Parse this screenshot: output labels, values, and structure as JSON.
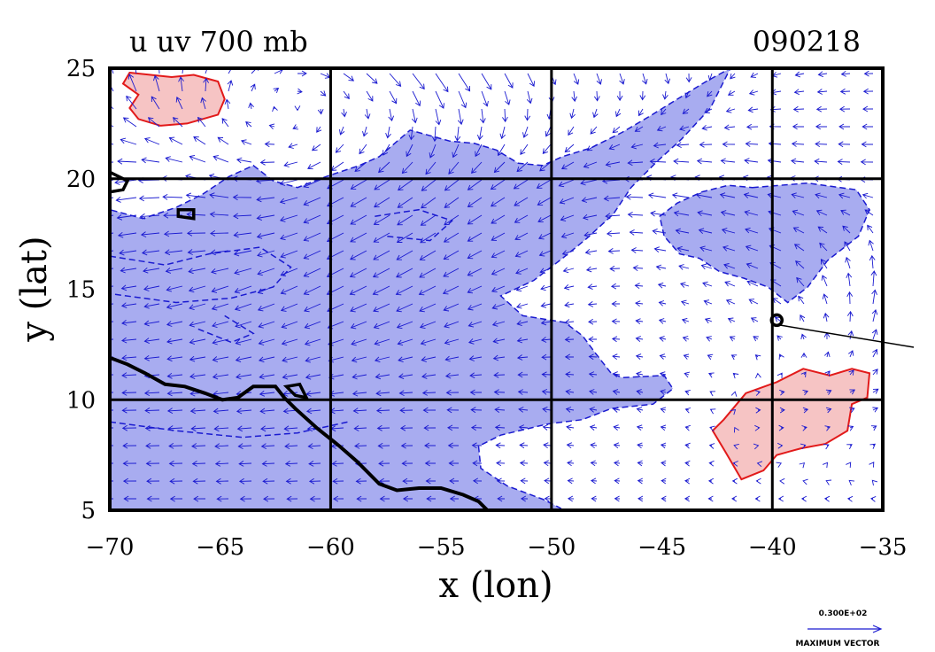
{
  "title_left": "u  uv  700  mb",
  "title_right": "090218",
  "xlabel": "x (lon)",
  "ylabel": "y (lat)",
  "key_magnitude": "0.300E+02",
  "key_label": "MAXIMUM VECTOR",
  "colors": {
    "blue_fill": "#a8acf0",
    "blue_line": "#1a1ad0",
    "red_fill": "#f6c4c4",
    "red_line": "#e21a1a",
    "grid": "#000000"
  },
  "chart_data": {
    "type": "vector-contour-map",
    "xlim": [
      -70,
      -35
    ],
    "ylim": [
      5,
      25
    ],
    "xticks": [
      {
        "value": -70,
        "label": "−70"
      },
      {
        "value": -65,
        "label": "−65"
      },
      {
        "value": -60,
        "label": "−60"
      },
      {
        "value": -55,
        "label": "−55"
      },
      {
        "value": -50,
        "label": "−50"
      },
      {
        "value": -45,
        "label": "−45"
      },
      {
        "value": -40,
        "label": "−40"
      },
      {
        "value": -35,
        "label": "−35"
      }
    ],
    "yticks": [
      {
        "value": 5,
        "label": "5"
      },
      {
        "value": 10,
        "label": "10"
      },
      {
        "value": 15,
        "label": "15"
      },
      {
        "value": 20,
        "label": "20"
      },
      {
        "value": 25,
        "label": "25"
      }
    ],
    "gridlines_x": [
      -60,
      -50,
      -40
    ],
    "gridlines_y": [
      10,
      20
    ],
    "negative_region": [
      [
        -70,
        5
      ],
      [
        -70,
        18.6
      ],
      [
        -68.5,
        18.2
      ],
      [
        -67,
        18.7
      ],
      [
        -65.8,
        19.3
      ],
      [
        -64.6,
        20.1
      ],
      [
        -63.5,
        20.6
      ],
      [
        -62.6,
        19.9
      ],
      [
        -61.5,
        19.6
      ],
      [
        -60.2,
        20.1
      ],
      [
        -58.7,
        20.6
      ],
      [
        -57.8,
        21.0
      ],
      [
        -56.4,
        22.2
      ],
      [
        -54.6,
        21.7
      ],
      [
        -53.5,
        21.6
      ],
      [
        -52.5,
        21.3
      ],
      [
        -51.5,
        20.7
      ],
      [
        -50.4,
        20.6
      ],
      [
        -49.5,
        21.0
      ],
      [
        -48.2,
        21.4
      ],
      [
        -46.8,
        22.1
      ],
      [
        -45.6,
        22.8
      ],
      [
        -44.3,
        23.6
      ],
      [
        -43,
        24.4
      ],
      [
        -41.9,
        25
      ],
      [
        -42.8,
        23.2
      ],
      [
        -44.1,
        21.8
      ],
      [
        -45.2,
        20.8
      ],
      [
        -46.4,
        19.6
      ],
      [
        -47.2,
        18.4
      ],
      [
        -48.4,
        17.3
      ],
      [
        -49.5,
        16.4
      ],
      [
        -50.8,
        15.4
      ],
      [
        -52.3,
        14.7
      ],
      [
        -51.3,
        13.8
      ],
      [
        -49.4,
        13.5
      ],
      [
        -48.6,
        12.9
      ],
      [
        -48,
        12.1
      ],
      [
        -47.3,
        11.2
      ],
      [
        -46.8,
        11.0
      ],
      [
        -44.9,
        11.1
      ],
      [
        -44.5,
        10.5
      ],
      [
        -45.4,
        9.8
      ],
      [
        -47.3,
        9.6
      ],
      [
        -48.6,
        9.1
      ],
      [
        -50.2,
        8.9
      ],
      [
        -52.3,
        8.4
      ],
      [
        -53.3,
        7.9
      ],
      [
        -53.2,
        6.9
      ],
      [
        -52,
        6.1
      ],
      [
        -50.4,
        5.5
      ],
      [
        -49.6,
        5.1
      ],
      [
        -49.5,
        5
      ]
    ],
    "negative_region_east": [
      [
        -40.9,
        19.6
      ],
      [
        -38.4,
        19.8
      ],
      [
        -36.2,
        19.5
      ],
      [
        -35.6,
        18.6
      ],
      [
        -36.1,
        17.4
      ],
      [
        -37.5,
        16.3
      ],
      [
        -38.4,
        15.1
      ],
      [
        -39.3,
        14.4
      ],
      [
        -40.2,
        15.1
      ],
      [
        -41.3,
        15.5
      ],
      [
        -42.4,
        15.8
      ],
      [
        -43.3,
        16.4
      ],
      [
        -44.2,
        16.6
      ],
      [
        -44.9,
        17.4
      ],
      [
        -45.1,
        18.3
      ],
      [
        -44.3,
        18.9
      ],
      [
        -43.2,
        19.4
      ],
      [
        -42,
        19.7
      ]
    ],
    "positive_region_nw": [
      [
        -69.1,
        24.8
      ],
      [
        -67.2,
        24.6
      ],
      [
        -66.2,
        24.7
      ],
      [
        -65.1,
        24.4
      ],
      [
        -64.8,
        23.6
      ],
      [
        -65.1,
        22.9
      ],
      [
        -66.5,
        22.5
      ],
      [
        -67.7,
        22.4
      ],
      [
        -68.7,
        22.7
      ],
      [
        -69.1,
        23.2
      ],
      [
        -68.7,
        23.8
      ],
      [
        -69.4,
        24.3
      ]
    ],
    "positive_region_east": [
      [
        -42.2,
        9.1
      ],
      [
        -41.2,
        10.3
      ],
      [
        -39.8,
        10.8
      ],
      [
        -38.6,
        11.4
      ],
      [
        -37.4,
        11.1
      ],
      [
        -36.4,
        11.4
      ],
      [
        -35.6,
        11.2
      ],
      [
        -35.7,
        10.1
      ],
      [
        -36.4,
        9.8
      ],
      [
        -36.6,
        8.6
      ],
      [
        -37.6,
        8.0
      ],
      [
        -38.7,
        7.8
      ],
      [
        -39.8,
        7.5
      ],
      [
        -40.4,
        6.8
      ],
      [
        -41.4,
        6.4
      ],
      [
        -42.1,
        7.6
      ],
      [
        -42.7,
        8.6
      ]
    ],
    "coastline": [
      [
        -70,
        11.9
      ],
      [
        -69.2,
        11.6
      ],
      [
        -68.4,
        11.2
      ],
      [
        -67.5,
        10.7
      ],
      [
        -66.6,
        10.6
      ],
      [
        -65.7,
        10.3
      ],
      [
        -64.9,
        10.0
      ],
      [
        -64.2,
        10.1
      ],
      [
        -63.5,
        10.6
      ],
      [
        -62.5,
        10.6
      ],
      [
        -62.1,
        10.1
      ],
      [
        -61.6,
        9.6
      ],
      [
        -60.6,
        8.7
      ],
      [
        -59.6,
        7.9
      ],
      [
        -58.8,
        7.2
      ],
      [
        -57.8,
        6.2
      ],
      [
        -57,
        5.9
      ],
      [
        -56.0,
        6.0
      ],
      [
        -55,
        6.0
      ],
      [
        -54,
        5.7
      ],
      [
        -53.3,
        5.4
      ],
      [
        -52.9,
        5.0
      ]
    ],
    "islands": [
      [
        [
          -70,
          20.3
        ],
        [
          -69.2,
          19.9
        ],
        [
          -69.4,
          19.5
        ],
        [
          -70,
          19.4
        ]
      ],
      [
        [
          -66.9,
          18.6
        ],
        [
          -66.2,
          18.6
        ],
        [
          -66.2,
          18.2
        ],
        [
          -66.9,
          18.3
        ]
      ],
      [
        [
          -62.0,
          10.6
        ],
        [
          -61.4,
          10.7
        ],
        [
          -61.1,
          10.1
        ],
        [
          -61.6,
          10.2
        ]
      ]
    ],
    "wind_vectors": [
      {
        "x": -70,
        "y": 25,
        "u": -5,
        "v": 18
      },
      {
        "x": -65,
        "y": 25,
        "u": 6,
        "v": 10
      },
      {
        "x": -60,
        "y": 25,
        "u": 8,
        "v": -4
      },
      {
        "x": -55,
        "y": 25,
        "u": 10,
        "v": -14
      },
      {
        "x": -50,
        "y": 25,
        "u": 4,
        "v": -8
      },
      {
        "x": -45,
        "y": 25,
        "u": 3,
        "v": -8
      },
      {
        "x": -40,
        "y": 25,
        "u": -6,
        "v": -2
      },
      {
        "x": -35,
        "y": 25,
        "u": -6,
        "v": 0
      },
      {
        "x": -70,
        "y": 20,
        "u": -16,
        "v": -4
      },
      {
        "x": -65,
        "y": 20,
        "u": -14,
        "v": 4
      },
      {
        "x": -60,
        "y": 20,
        "u": -12,
        "v": -6
      },
      {
        "x": -55,
        "y": 20,
        "u": -10,
        "v": -8
      },
      {
        "x": -50,
        "y": 20,
        "u": -10,
        "v": -6
      },
      {
        "x": -45,
        "y": 20,
        "u": -14,
        "v": 2
      },
      {
        "x": -40,
        "y": 20,
        "u": -10,
        "v": 2
      },
      {
        "x": -35,
        "y": 20,
        "u": -9,
        "v": 0
      },
      {
        "x": -70,
        "y": 15,
        "u": -10,
        "v": -1
      },
      {
        "x": -65,
        "y": 15,
        "u": -12,
        "v": -4
      },
      {
        "x": -60,
        "y": 15,
        "u": -12,
        "v": -6
      },
      {
        "x": -55,
        "y": 15,
        "u": -12,
        "v": -6
      },
      {
        "x": -50,
        "y": 15,
        "u": -7,
        "v": -2
      },
      {
        "x": -45,
        "y": 15,
        "u": -5,
        "v": 1
      },
      {
        "x": -40,
        "y": 15,
        "u": -8,
        "v": 4
      },
      {
        "x": -35,
        "y": 15,
        "u": 2,
        "v": 12
      },
      {
        "x": -70,
        "y": 10,
        "u": -10,
        "v": 0
      },
      {
        "x": -65,
        "y": 10,
        "u": -11,
        "v": -1
      },
      {
        "x": -60,
        "y": 10,
        "u": -10,
        "v": -1
      },
      {
        "x": -55,
        "y": 10,
        "u": -9,
        "v": 0
      },
      {
        "x": -50,
        "y": 10,
        "u": -6,
        "v": 1
      },
      {
        "x": -45,
        "y": 10,
        "u": -4,
        "v": 1
      },
      {
        "x": -40,
        "y": 10,
        "u": 3,
        "v": 0
      },
      {
        "x": -35,
        "y": 10,
        "u": 4,
        "v": 2
      },
      {
        "x": -70,
        "y": 5,
        "u": -9,
        "v": 0
      },
      {
        "x": -65,
        "y": 5,
        "u": -8,
        "v": 0
      },
      {
        "x": -60,
        "y": 5,
        "u": -7,
        "v": 0
      },
      {
        "x": -55,
        "y": 5,
        "u": -6,
        "v": 0
      },
      {
        "x": -50,
        "y": 5,
        "u": -4,
        "v": 0
      },
      {
        "x": -45,
        "y": 5,
        "u": -3,
        "v": 0
      },
      {
        "x": -40,
        "y": 5,
        "u": -2,
        "v": 0
      },
      {
        "x": -35,
        "y": 5,
        "u": -2,
        "v": 0
      }
    ]
  }
}
